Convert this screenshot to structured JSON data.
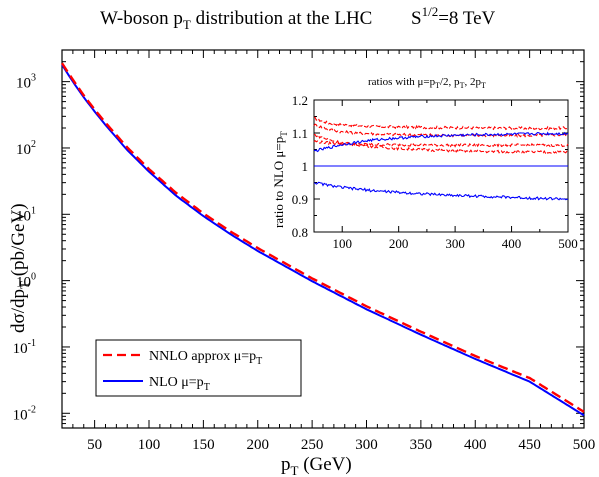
{
  "chart_data": [
    {
      "type": "line",
      "title": "W-boson pT distribution at the LHC",
      "title_energy": "S1/2=8 TeV",
      "xlabel": "pT (GeV)",
      "ylabel": "dσ/dpT (pb/GeV)",
      "xlim": [
        20,
        500
      ],
      "ylim": [
        0.006,
        3000
      ],
      "y_scale": "log",
      "grid": false,
      "legend_position": "bottom-left",
      "x_ticks": [
        "50",
        "100",
        "150",
        "200",
        "250",
        "300",
        "350",
        "400",
        "450",
        "500"
      ],
      "y_ticks": [
        "10-2",
        "10-1",
        "100",
        "101",
        "102",
        "103"
      ],
      "x": [
        20,
        30,
        40,
        50,
        60,
        80,
        100,
        125,
        150,
        175,
        200,
        250,
        300,
        350,
        400,
        450,
        500
      ],
      "series": [
        {
          "name": "NNLO approx μ=pT",
          "color": "#ff0000",
          "style": "dashed",
          "values": [
            1900,
            1070,
            620,
            380,
            240,
            102,
            48,
            21,
            10.3,
            5.5,
            3.1,
            1.08,
            0.41,
            0.17,
            0.073,
            0.034,
            0.0105
          ]
        },
        {
          "name": "NLO μ=pT",
          "color": "#0000ff",
          "style": "solid",
          "values": [
            1800,
            1000,
            580,
            355,
            222,
            93,
            44,
            19,
            9.4,
            5.0,
            2.8,
            0.98,
            0.37,
            0.153,
            0.066,
            0.03,
            0.0093
          ]
        }
      ]
    },
    {
      "type": "line",
      "title": "ratios with μ=pT/2, pT, 2pT",
      "xlabel": "",
      "ylabel": "ratio to NLO μ=pT",
      "xlim": [
        50,
        500
      ],
      "ylim": [
        0.8,
        1.2
      ],
      "grid": false,
      "x_ticks": [
        "100",
        "200",
        "300",
        "400",
        "500"
      ],
      "y_ticks": [
        "0.8",
        "0.9",
        "1",
        "1.1",
        "1.2"
      ],
      "x": [
        50,
        75,
        100,
        150,
        200,
        250,
        300,
        350,
        400,
        450,
        500
      ],
      "series": [
        {
          "color": "#ff0000",
          "style": "dashed",
          "values": [
            1.145,
            1.13,
            1.125,
            1.12,
            1.118,
            1.117,
            1.116,
            1.115,
            1.115,
            1.114,
            1.115
          ]
        },
        {
          "color": "#ff0000",
          "style": "dashed",
          "values": [
            1.125,
            1.112,
            1.103,
            1.098,
            1.095,
            1.094,
            1.093,
            1.093,
            1.092,
            1.093,
            1.095
          ]
        },
        {
          "color": "#ff0000",
          "style": "dashed",
          "values": [
            1.075,
            1.07,
            1.067,
            1.065,
            1.064,
            1.064,
            1.063,
            1.063,
            1.063,
            1.063,
            1.063
          ]
        },
        {
          "color": "#ff0000",
          "style": "dashed",
          "values": [
            1.095,
            1.08,
            1.07,
            1.06,
            1.053,
            1.049,
            1.046,
            1.044,
            1.043,
            1.042,
            1.042
          ]
        },
        {
          "color": "#0000ff",
          "style": "solid",
          "values": [
            1.045,
            1.055,
            1.065,
            1.078,
            1.085,
            1.09,
            1.093,
            1.095,
            1.096,
            1.098,
            1.098
          ]
        },
        {
          "color": "#0000ff",
          "style": "solid",
          "values": [
            1.0,
            1.0,
            1.0,
            1.0,
            1.0,
            1.0,
            1.0,
            1.0,
            1.0,
            1.0,
            1.0
          ]
        },
        {
          "color": "#0000ff",
          "style": "solid",
          "values": [
            0.95,
            0.942,
            0.935,
            0.926,
            0.92,
            0.915,
            0.911,
            0.908,
            0.905,
            0.902,
            0.9
          ]
        }
      ]
    }
  ],
  "labels": {
    "title_main": "W-boson p",
    "title_main_sub": "T",
    "title_main_rest": " distribution at the LHC",
    "title_energy_base": "S",
    "title_energy_sup": "1/2",
    "title_energy_rest": "=8 TeV",
    "xlabel_base": "p",
    "xlabel_sub": "T",
    "xlabel_rest": " (GeV)",
    "ylabel_base": "dσ/dp",
    "ylabel_sub": "T",
    "ylabel_rest": " (pb/GeV)",
    "y_tick_base": "10",
    "y_tick_exps": [
      "-2",
      "-1",
      "0",
      "1",
      "2",
      "3"
    ],
    "legend_nnlo": "NNLO approx   μ=p",
    "legend_nnlo_sub": "T",
    "legend_nlo": "NLO  μ=p",
    "legend_nlo_sub": "T",
    "inset_title_a": "ratios with μ=p",
    "inset_title_a_sub": "T",
    "inset_title_b": "/2, p",
    "inset_title_b_sub": "T",
    "inset_title_c": ", 2p",
    "inset_title_c_sub": "T",
    "inset_ylabel_base": "ratio to NLO μ=p",
    "inset_ylabel_sub": "T"
  }
}
